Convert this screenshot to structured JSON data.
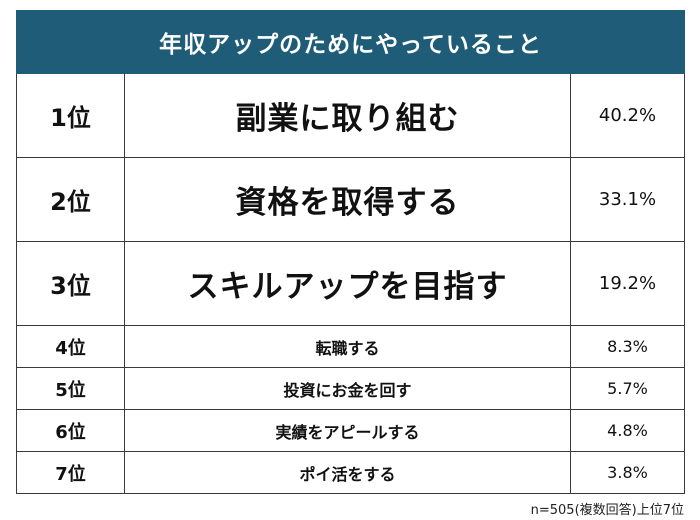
{
  "header": {
    "title": "年収アップのためにやっていること"
  },
  "ranking": [
    {
      "rank": "1位",
      "item": "副業に取り組む",
      "percent": "40.2%",
      "value": 40.2
    },
    {
      "rank": "2位",
      "item": "資格を取得する",
      "percent": "33.1%",
      "value": 33.1
    },
    {
      "rank": "3位",
      "item": "スキルアップを目指す",
      "percent": "19.2%",
      "value": 19.2
    },
    {
      "rank": "4位",
      "item": "転職する",
      "percent": "8.3%",
      "value": 8.3
    },
    {
      "rank": "5位",
      "item": "投資にお金を回す",
      "percent": "5.7%",
      "value": 5.7
    },
    {
      "rank": "6位",
      "item": "実績をアピールする",
      "percent": "4.8%",
      "value": 4.8
    },
    {
      "rank": "7位",
      "item": "ポイ活をする",
      "percent": "3.8%",
      "value": 3.8
    }
  ],
  "footnote": "n=505(複数回答)上位7位",
  "colors": {
    "header_background": "#1e5c77",
    "header_text": "#ffffff",
    "border": "#3a3a3a"
  },
  "chart_data": {
    "type": "table",
    "title": "年収アップのためにやっていること",
    "columns": [
      "rank",
      "item",
      "percent"
    ],
    "categories": [
      "副業に取り組む",
      "資格を取得する",
      "スキルアップを目指す",
      "転職する",
      "投資にお金を回す",
      "実績をアピールする",
      "ポイ活をする"
    ],
    "values": [
      40.2,
      33.1,
      19.2,
      8.3,
      5.7,
      4.8,
      3.8
    ],
    "unit": "%",
    "note": "n=505(複数回答)上位7位"
  }
}
